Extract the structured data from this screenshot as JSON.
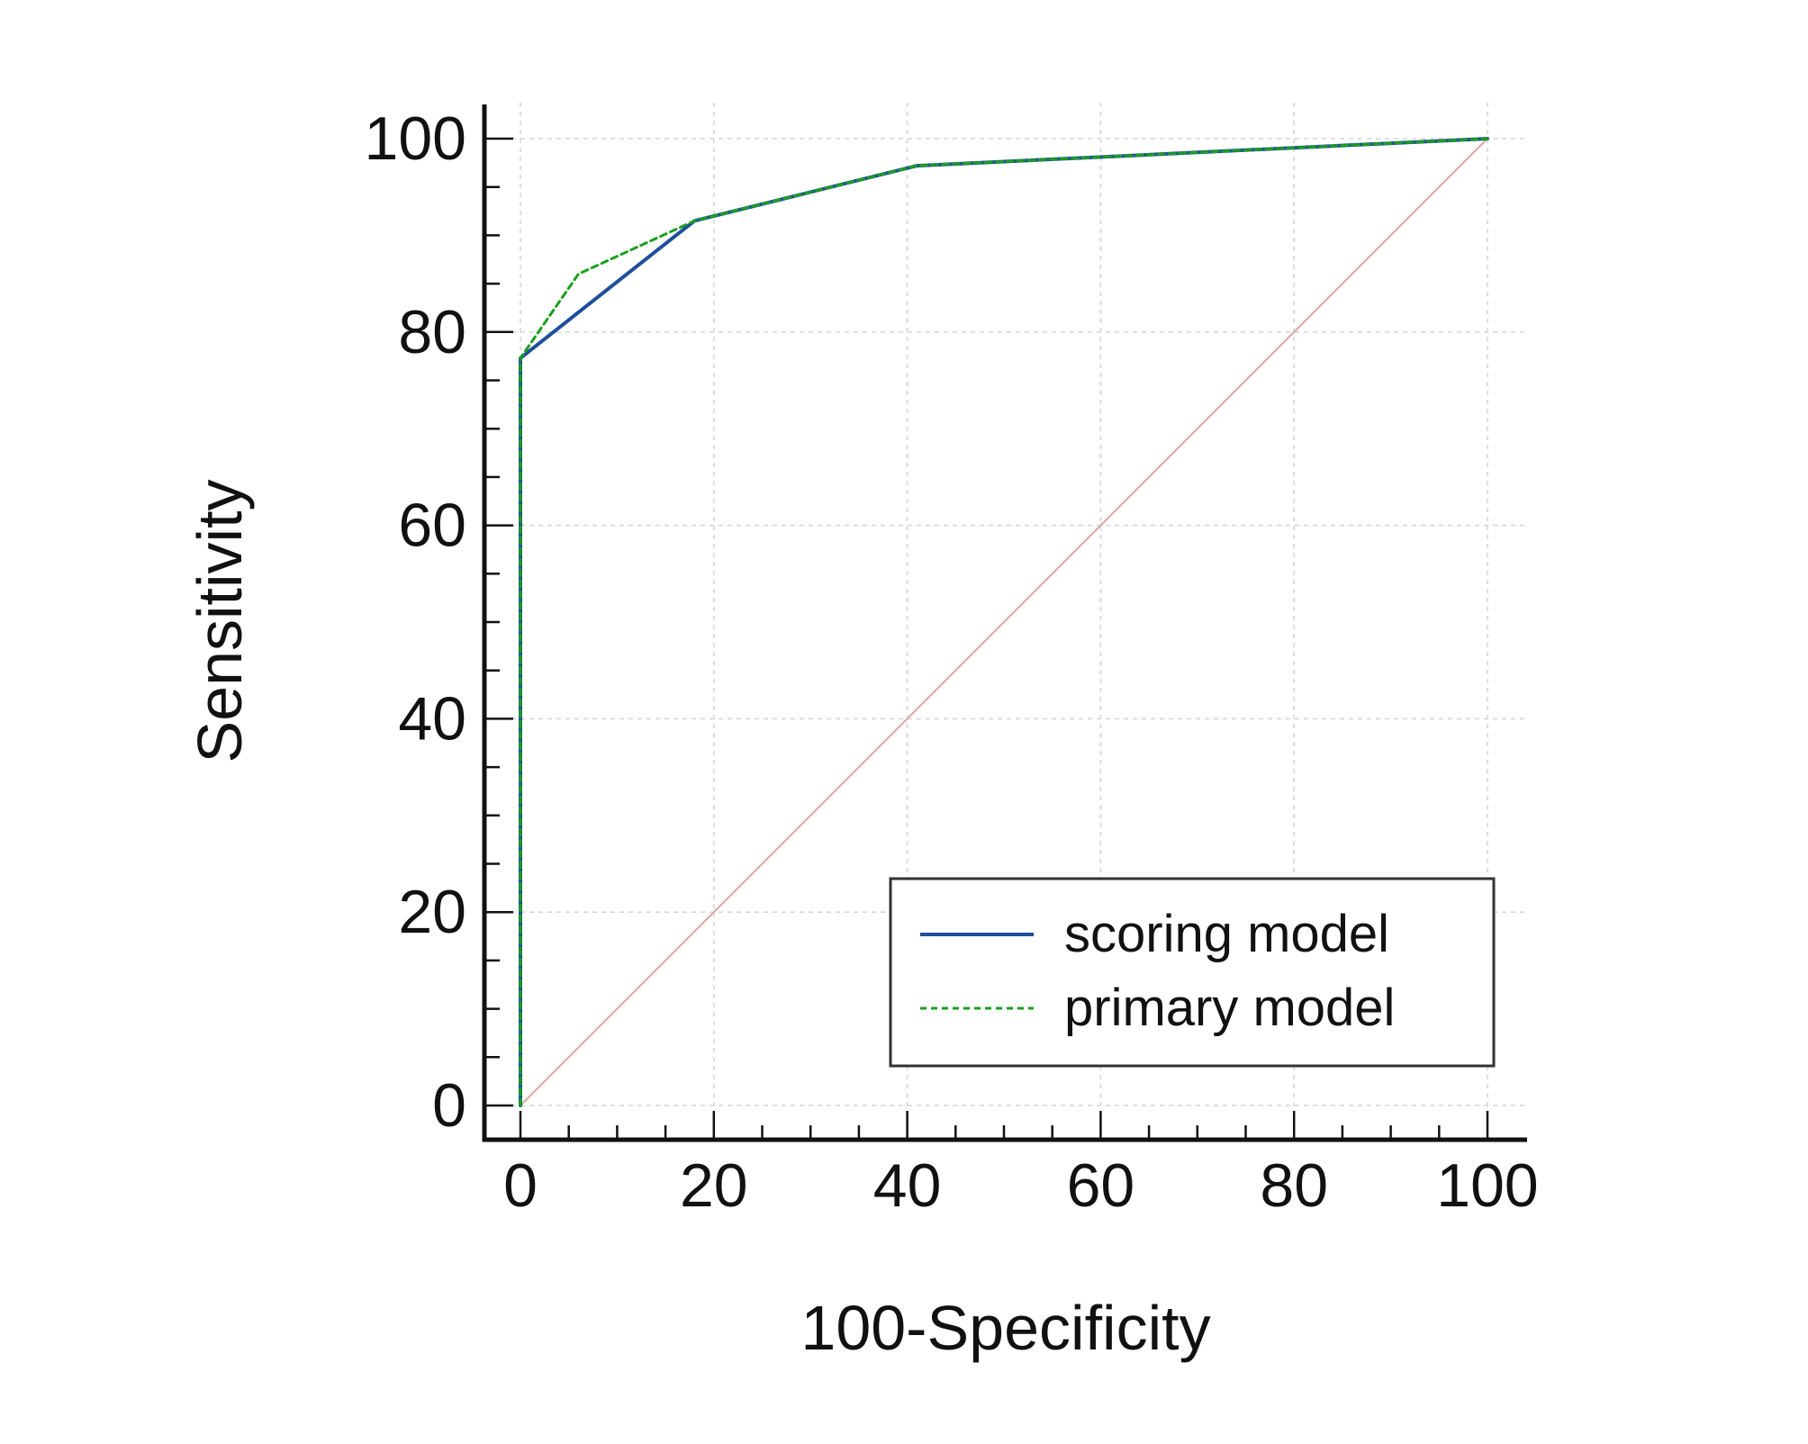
{
  "chart_data": {
    "type": "line",
    "title": "",
    "xlabel": "100-Specificity",
    "ylabel": "Sensitivity",
    "xlim": [
      0,
      100
    ],
    "ylim": [
      0,
      100
    ],
    "xticks": [
      0,
      20,
      40,
      60,
      80,
      100
    ],
    "yticks": [
      0,
      20,
      40,
      60,
      80,
      100
    ],
    "grid": true,
    "legend_position": "bottom-right",
    "series": [
      {
        "name": "scoring model",
        "style": "solid",
        "color": "#1f4e9a",
        "x": [
          0,
          0,
          18,
          41,
          100
        ],
        "y": [
          0,
          77.3,
          91.5,
          97.2,
          100
        ]
      },
      {
        "name": "primary model",
        "style": "dashed",
        "color": "#18a01c",
        "x": [
          0,
          0,
          6,
          18,
          41,
          100
        ],
        "y": [
          0,
          77.3,
          86,
          91.5,
          97.2,
          100
        ]
      }
    ],
    "reference_line": {
      "color": "#d9a79f",
      "x": [
        0,
        100
      ],
      "y": [
        0,
        100
      ]
    }
  }
}
